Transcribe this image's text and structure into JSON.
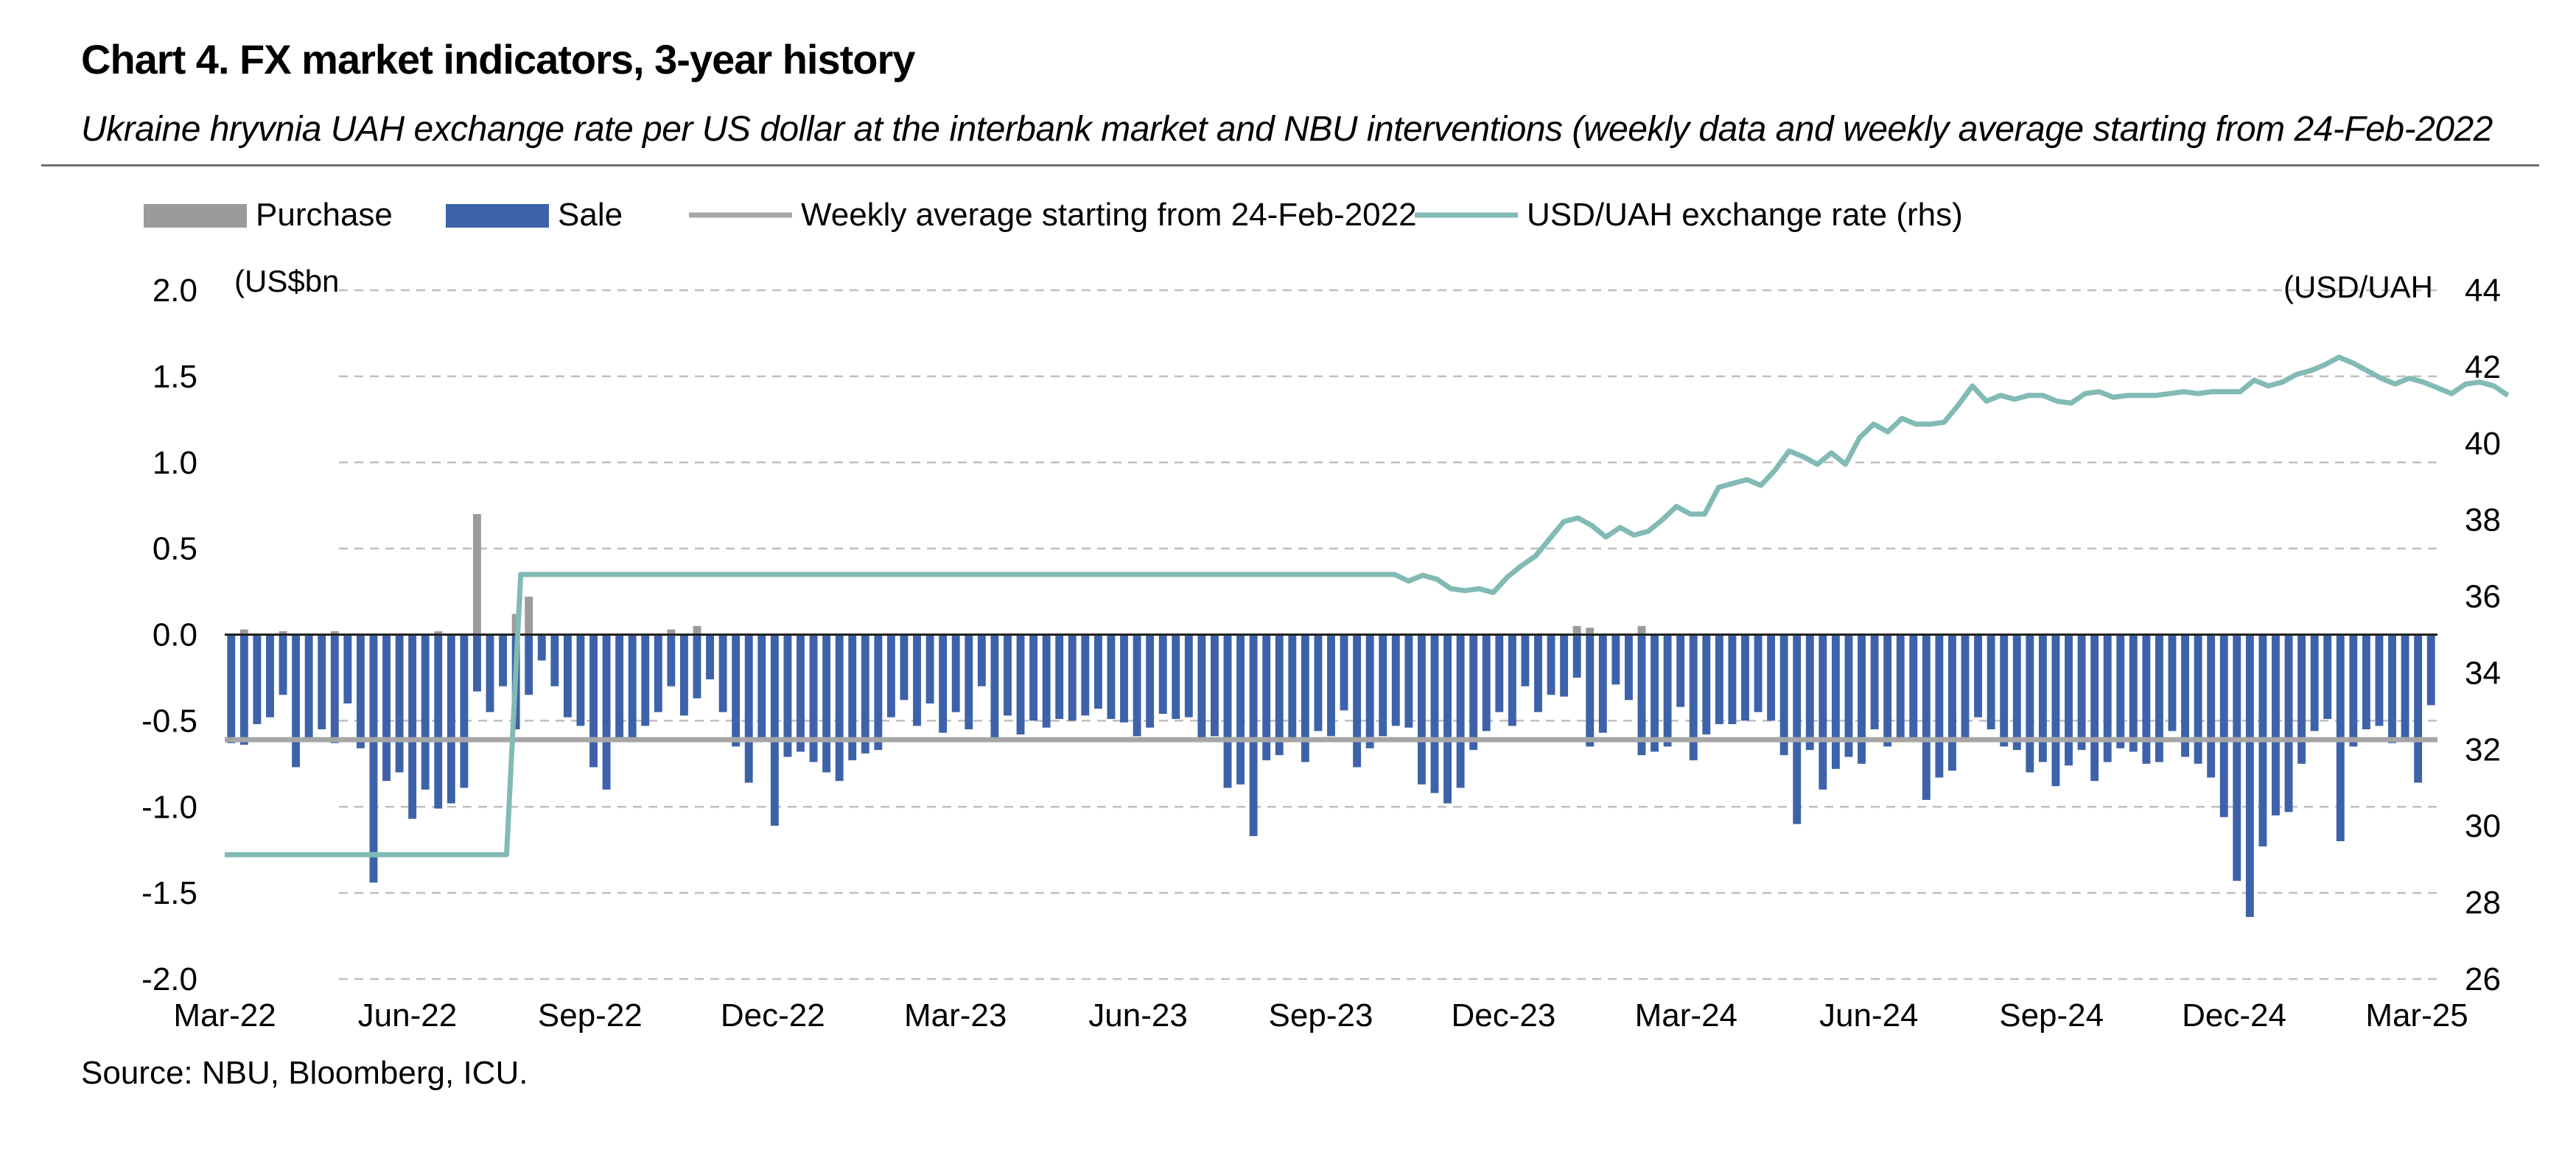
{
  "header": {
    "title": "Chart 4. FX market indicators, 3-year history",
    "subtitle": "Ukraine hryvnia UAH exchange rate per US dollar at the interbank market and NBU interventions (weekly data and weekly average starting from 24-Feb-2022",
    "source": "Source: NBU, Bloomberg, ICU."
  },
  "colors": {
    "purchase": "#9b9b9b",
    "sale": "#3d62aa",
    "weekly_average": "#a6a6a6",
    "exchange_rate": "#82bab5",
    "grid": "#bfbfbf",
    "axis": "#222222"
  },
  "chart_data": {
    "type": "bar",
    "title": "Chart 4. FX market indicators, 3-year history",
    "left_axis_unit": "(US$bn",
    "right_axis_unit": "(USD/UAH",
    "ylim_left": [
      -2.0,
      2.0
    ],
    "ylim_right": [
      26,
      44
    ],
    "y_ticks_left": [
      "2.0",
      "1.5",
      "1.0",
      "0.5",
      "0.0",
      "-0.5",
      "-1.0",
      "-1.5",
      "-2.0"
    ],
    "y_ticks_right": [
      "44",
      "42",
      "40",
      "38",
      "36",
      "34",
      "32",
      "30",
      "28",
      "26"
    ],
    "x_tick_labels": [
      "Mar-22",
      "Jun-22",
      "Sep-22",
      "Dec-22",
      "Mar-23",
      "Jun-23",
      "Sep-23",
      "Dec-23",
      "Mar-24",
      "Jun-24",
      "Sep-24",
      "Dec-24",
      "Mar-25"
    ],
    "grid": "horizontal dashed",
    "legend_position": "top",
    "legend": [
      {
        "key": "purchase",
        "label": "Purchase"
      },
      {
        "key": "sale",
        "label": "Sale"
      },
      {
        "key": "weekly_average",
        "label": "Weekly average starting from 24-Feb-2022"
      },
      {
        "key": "exchange_rate",
        "label": "USD/UAH exchange rate (rhs)"
      }
    ],
    "x_start": "2022-02-28",
    "x_end": "2025-03-03",
    "weekly_sale": [
      -0.63,
      -0.64,
      -0.52,
      -0.48,
      -0.35,
      -0.77,
      -0.6,
      -0.55,
      -0.63,
      -0.4,
      -0.66,
      -1.44,
      -0.85,
      -0.8,
      -1.07,
      -0.9,
      -1.01,
      -0.98,
      -0.89,
      -0.33,
      -0.45,
      -0.3,
      -0.55,
      -0.35,
      -0.15,
      -0.3,
      -0.48,
      -0.53,
      -0.77,
      -0.9,
      -0.62,
      -0.6,
      -0.53,
      -0.45,
      -0.3,
      -0.47,
      -0.37,
      -0.26,
      -0.45,
      -0.65,
      -0.86,
      -0.6,
      -1.11,
      -0.71,
      -0.68,
      -0.74,
      -0.8,
      -0.85,
      -0.73,
      -0.69,
      -0.67,
      -0.48,
      -0.38,
      -0.53,
      -0.4,
      -0.57,
      -0.45,
      -0.55,
      -0.3,
      -0.6,
      -0.47,
      -0.58,
      -0.5,
      -0.54,
      -0.49,
      -0.5,
      -0.47,
      -0.43,
      -0.49,
      -0.51,
      -0.59,
      -0.54,
      -0.46,
      -0.49,
      -0.48,
      -0.62,
      -0.59,
      -0.89,
      -0.87,
      -1.17,
      -0.73,
      -0.7,
      -0.6,
      -0.74,
      -0.56,
      -0.59,
      -0.44,
      -0.77,
      -0.66,
      -0.59,
      -0.53,
      -0.54,
      -0.87,
      -0.92,
      -0.98,
      -0.89,
      -0.67,
      -0.56,
      -0.45,
      -0.53,
      -0.3,
      -0.45,
      -0.35,
      -0.36,
      -0.25,
      -0.65,
      -0.57,
      -0.29,
      -0.38,
      -0.7,
      -0.68,
      -0.65,
      -0.42,
      -0.73,
      -0.58,
      -0.52,
      -0.52,
      -0.5,
      -0.45,
      -0.5,
      -0.7,
      -1.1,
      -0.67,
      -0.9,
      -0.78,
      -0.71,
      -0.75,
      -0.55,
      -0.65,
      -0.6,
      -0.61,
      -0.96,
      -0.83,
      -0.79,
      -0.6,
      -0.48,
      -0.55,
      -0.65,
      -0.67,
      -0.8,
      -0.74,
      -0.88,
      -0.76,
      -0.67,
      -0.85,
      -0.74,
      -0.66,
      -0.68,
      -0.75,
      -0.74,
      -0.56,
      -0.71,
      -0.75,
      -0.83,
      -1.06,
      -1.43,
      -1.64,
      -1.23,
      -1.05,
      -1.03,
      -0.75,
      -0.56,
      -0.49,
      -1.2,
      -0.65,
      -0.55,
      -0.53,
      -0.63,
      -0.6,
      -0.86,
      -0.41
    ],
    "weekly_purchase": [
      0.0,
      0.03,
      0.0,
      0.0,
      0.02,
      0.0,
      0.0,
      0.0,
      0.02,
      0.0,
      0.0,
      0.0,
      0.0,
      0.0,
      0.0,
      0.0,
      0.02,
      0.0,
      0.0,
      0.7,
      0.0,
      0.0,
      0.12,
      0.22,
      0.0,
      0.0,
      0.0,
      0.0,
      0.0,
      0.0,
      0.0,
      0.0,
      0.0,
      0.0,
      0.03,
      0.0,
      0.05,
      0.0,
      0.0,
      0.0,
      0.0,
      0.0,
      0.0,
      0.0,
      0.0,
      0.0,
      0.0,
      0.0,
      0.0,
      0.0,
      0.0,
      0.0,
      0.0,
      0.0,
      0.0,
      0.0,
      0.0,
      0.0,
      0.0,
      0.0,
      0.0,
      0.0,
      0.0,
      0.0,
      0.0,
      0.0,
      0.0,
      0.0,
      0.0,
      0.0,
      0.0,
      0.0,
      0.0,
      0.0,
      0.0,
      0.0,
      0.0,
      0.0,
      0.0,
      0.0,
      0.0,
      0.0,
      0.0,
      0.0,
      0.0,
      0.0,
      0.0,
      0.0,
      0.0,
      0.0,
      0.0,
      0.0,
      0.0,
      0.0,
      0.0,
      0.0,
      0.0,
      0.0,
      0.0,
      0.0,
      0.0,
      0.0,
      0.0,
      0.0,
      0.05,
      0.04,
      0.0,
      0.0,
      0.0,
      0.05,
      0.0,
      0.0,
      0.0,
      0.0,
      0.0,
      0.0,
      0.0,
      0.0,
      0.0,
      0.0,
      0.0,
      0.0,
      0.0,
      0.0,
      0.0,
      0.0,
      0.0,
      0.0,
      0.0,
      0.0,
      0.0,
      0.0,
      0.0,
      0.0,
      0.0,
      0.0,
      0.0,
      0.0,
      0.0,
      0.0,
      0.0,
      0.0,
      0.0,
      0.0,
      0.0,
      0.0,
      0.0,
      0.0,
      0.0,
      0.0,
      0.0,
      0.0,
      0.0,
      0.0,
      0.0,
      0.0,
      0.0,
      0.0,
      0.0,
      0.0,
      0.0,
      0.0,
      0.0,
      0.0,
      0.0,
      0.0,
      0.0,
      0.0,
      0.0,
      0.0,
      0.0,
      0.0,
      0.0,
      0.0,
      0.0
    ],
    "weekly_average": -0.61,
    "exchange_rate": [
      {
        "x": "2022-02-28",
        "y": 29.25
      },
      {
        "x": "2022-07-18",
        "y": 29.25
      },
      {
        "x": "2022-07-25",
        "y": 36.57
      },
      {
        "x": "2023-10-02",
        "y": 36.57
      },
      {
        "x": "2023-10-09",
        "y": 36.4
      },
      {
        "x": "2023-10-16",
        "y": 36.55
      },
      {
        "x": "2023-10-23",
        "y": 36.45
      },
      {
        "x": "2023-10-30",
        "y": 36.2
      },
      {
        "x": "2023-11-06",
        "y": 36.15
      },
      {
        "x": "2023-11-13",
        "y": 36.2
      },
      {
        "x": "2023-11-20",
        "y": 36.1
      },
      {
        "x": "2023-11-27",
        "y": 36.5
      },
      {
        "x": "2023-12-04",
        "y": 36.8
      },
      {
        "x": "2023-12-11",
        "y": 37.05
      },
      {
        "x": "2023-12-18",
        "y": 37.5
      },
      {
        "x": "2023-12-25",
        "y": 37.95
      },
      {
        "x": "2024-01-01",
        "y": 38.05
      },
      {
        "x": "2024-01-08",
        "y": 37.85
      },
      {
        "x": "2024-01-15",
        "y": 37.55
      },
      {
        "x": "2024-01-22",
        "y": 37.8
      },
      {
        "x": "2024-01-29",
        "y": 37.6
      },
      {
        "x": "2024-02-05",
        "y": 37.7
      },
      {
        "x": "2024-02-12",
        "y": 38.0
      },
      {
        "x": "2024-02-19",
        "y": 38.35
      },
      {
        "x": "2024-02-26",
        "y": 38.15
      },
      {
        "x": "2024-03-04",
        "y": 38.15
      },
      {
        "x": "2024-03-11",
        "y": 38.85
      },
      {
        "x": "2024-03-18",
        "y": 38.95
      },
      {
        "x": "2024-03-25",
        "y": 39.05
      },
      {
        "x": "2024-04-01",
        "y": 38.9
      },
      {
        "x": "2024-04-08",
        "y": 39.3
      },
      {
        "x": "2024-04-15",
        "y": 39.8
      },
      {
        "x": "2024-04-22",
        "y": 39.65
      },
      {
        "x": "2024-04-29",
        "y": 39.45
      },
      {
        "x": "2024-05-06",
        "y": 39.75
      },
      {
        "x": "2024-05-13",
        "y": 39.45
      },
      {
        "x": "2024-05-20",
        "y": 40.15
      },
      {
        "x": "2024-05-27",
        "y": 40.5
      },
      {
        "x": "2024-06-03",
        "y": 40.3
      },
      {
        "x": "2024-06-10",
        "y": 40.65
      },
      {
        "x": "2024-06-17",
        "y": 40.5
      },
      {
        "x": "2024-06-24",
        "y": 40.5
      },
      {
        "x": "2024-07-01",
        "y": 40.55
      },
      {
        "x": "2024-07-08",
        "y": 41.0
      },
      {
        "x": "2024-07-15",
        "y": 41.5
      },
      {
        "x": "2024-07-22",
        "y": 41.1
      },
      {
        "x": "2024-07-29",
        "y": 41.25
      },
      {
        "x": "2024-08-05",
        "y": 41.15
      },
      {
        "x": "2024-08-12",
        "y": 41.25
      },
      {
        "x": "2024-08-19",
        "y": 41.25
      },
      {
        "x": "2024-08-26",
        "y": 41.1
      },
      {
        "x": "2024-09-02",
        "y": 41.05
      },
      {
        "x": "2024-09-09",
        "y": 41.3
      },
      {
        "x": "2024-09-16",
        "y": 41.35
      },
      {
        "x": "2024-09-23",
        "y": 41.2
      },
      {
        "x": "2024-09-30",
        "y": 41.25
      },
      {
        "x": "2024-10-07",
        "y": 41.25
      },
      {
        "x": "2024-10-14",
        "y": 41.25
      },
      {
        "x": "2024-10-21",
        "y": 41.3
      },
      {
        "x": "2024-10-28",
        "y": 41.35
      },
      {
        "x": "2024-11-04",
        "y": 41.3
      },
      {
        "x": "2024-11-11",
        "y": 41.35
      },
      {
        "x": "2024-11-18",
        "y": 41.35
      },
      {
        "x": "2024-11-25",
        "y": 41.35
      },
      {
        "x": "2024-12-02",
        "y": 41.65
      },
      {
        "x": "2024-12-09",
        "y": 41.5
      },
      {
        "x": "2024-12-16",
        "y": 41.6
      },
      {
        "x": "2024-12-23",
        "y": 41.8
      },
      {
        "x": "2024-12-30",
        "y": 41.9
      },
      {
        "x": "2025-01-06",
        "y": 42.05
      },
      {
        "x": "2025-01-13",
        "y": 42.25
      },
      {
        "x": "2025-01-20",
        "y": 42.1
      },
      {
        "x": "2025-01-27",
        "y": 41.9
      },
      {
        "x": "2025-02-03",
        "y": 41.7
      },
      {
        "x": "2025-02-10",
        "y": 41.55
      },
      {
        "x": "2025-02-17",
        "y": 41.7
      },
      {
        "x": "2025-02-24",
        "y": 41.6
      },
      {
        "x": "2025-03-03",
        "y": 41.45
      },
      {
        "x": "2025-03-10",
        "y": 41.3
      },
      {
        "x": "2025-03-17",
        "y": 41.55
      },
      {
        "x": "2025-03-24",
        "y": 41.6
      },
      {
        "x": "2025-03-31",
        "y": 41.5
      },
      {
        "x": "2025-04-07",
        "y": 41.25
      }
    ]
  }
}
